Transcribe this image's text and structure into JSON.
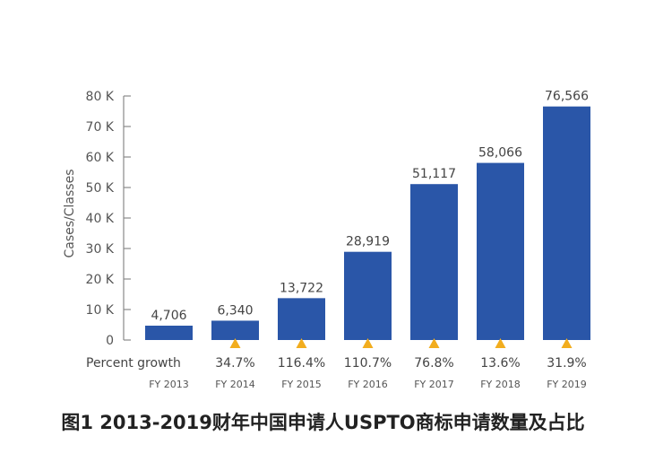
{
  "chart_data": {
    "type": "bar",
    "ylabel": "Cases/Classes",
    "ylim": [
      0,
      80000
    ],
    "yticks": [
      0,
      10000,
      20000,
      30000,
      40000,
      50000,
      60000,
      70000,
      80000
    ],
    "ytick_labels": [
      "0",
      "10 K",
      "20 K",
      "30 K",
      "40 K",
      "50 K",
      "60 K",
      "70 K",
      "80 K"
    ],
    "categories": [
      "FY 2013",
      "FY 2014",
      "FY 2015",
      "FY 2016",
      "FY 2017",
      "FY 2018",
      "FY 2019"
    ],
    "values": [
      4706,
      6340,
      13722,
      28919,
      51117,
      58066,
      76566
    ],
    "value_labels": [
      "4,706",
      "6,340",
      "13,722",
      "28,919",
      "51,117",
      "58,066",
      "76,566"
    ],
    "growth_row_label": "Percent growth",
    "growth": [
      "",
      "34.7%",
      "116.4%",
      "110.7%",
      "76.8%",
      "13.6%",
      "31.9%"
    ],
    "grid": false,
    "bar_color": "#2a56a8",
    "marker_color": "#f2ad1e",
    "caption": "图1 2013-2019财年中国申请人USPTO商标申请数量及占比"
  }
}
